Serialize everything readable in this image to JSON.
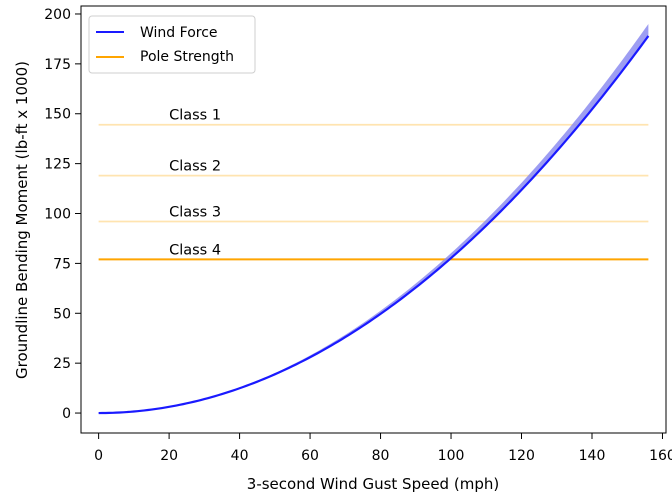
{
  "chart_data": {
    "type": "line",
    "title": "",
    "xlabel": "3-second Wind Gust Speed (mph)",
    "ylabel": "Groundline Bending Moment (lb-ft x 1000)",
    "xlim": [
      -5,
      161
    ],
    "ylim": [
      -10,
      204
    ],
    "xticks": [
      0,
      20,
      40,
      60,
      80,
      100,
      120,
      140,
      160
    ],
    "yticks": [
      0,
      25,
      50,
      75,
      100,
      125,
      150,
      175,
      200
    ],
    "x_tick_labels": [
      "0",
      "20",
      "40",
      "60",
      "80",
      "100",
      "120",
      "140",
      "160"
    ],
    "y_tick_labels": [
      "0",
      "25",
      "50",
      "75",
      "100",
      "125",
      "150",
      "175",
      "200"
    ],
    "grid": false,
    "legend": {
      "position": "top-left",
      "entries": [
        {
          "label": "Wind Force",
          "color": "#1a1aff"
        },
        {
          "label": "Pole Strength",
          "color": "#ffa500"
        }
      ]
    },
    "wind_force": {
      "name": "Wind Force",
      "color": "#1a1aff",
      "band_color": "#8c8cf0",
      "x": [
        0,
        20,
        40,
        60,
        80,
        100,
        120,
        140,
        156
      ],
      "y": [
        0,
        3.1,
        12.4,
        27.9,
        49.6,
        77.5,
        111.6,
        151.9,
        189.0
      ],
      "band_upper": [
        0,
        3.2,
        12.8,
        28.8,
        51.2,
        80.0,
        115.2,
        156.8,
        195.0
      ]
    },
    "pole_strength": [
      {
        "label": "Class 1",
        "value": 144.5,
        "color": "#ffe4b0",
        "emphasized": false
      },
      {
        "label": "Class 2",
        "value": 119,
        "color": "#ffe4b0",
        "emphasized": false
      },
      {
        "label": "Class 3",
        "value": 96,
        "color": "#ffe4b0",
        "emphasized": false
      },
      {
        "label": "Class 4",
        "value": 77,
        "color": "#ffa500",
        "emphasized": true
      }
    ],
    "pole_x_range": [
      0,
      156
    ],
    "class_label_x": 20
  }
}
